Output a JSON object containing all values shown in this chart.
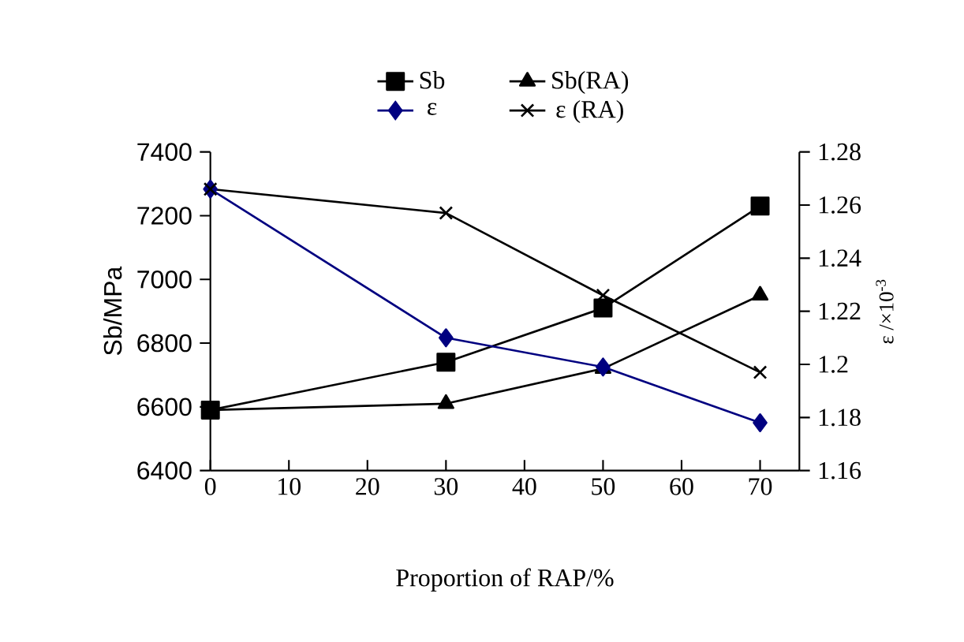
{
  "chart_data": {
    "type": "line",
    "xlabel": "Proportion of RAP/%",
    "ylabel": "Sb/MPa",
    "y2label": "ε /×10$^{-3}$",
    "x": [
      0,
      30,
      50,
      70
    ],
    "xlim": [
      0,
      75
    ],
    "xticks": [
      0,
      10,
      20,
      30,
      40,
      50,
      60,
      70
    ],
    "ylim": [
      6400,
      7400
    ],
    "yticks": [
      6400,
      6600,
      6800,
      7000,
      7200,
      7400
    ],
    "y2lim": [
      1.16,
      1.28
    ],
    "y2ticks": [
      1.16,
      1.18,
      1.2,
      1.22,
      1.24,
      1.26,
      1.28
    ],
    "legend": "top",
    "grid": false,
    "line_style": "solid",
    "series": [
      {
        "name": "Sb",
        "color": "#000000",
        "marker": "square",
        "values": [
          6590,
          6740,
          6910,
          7230
        ]
      },
      {
        "name": "Sb(RA)",
        "color": "#000000",
        "marker": "triangle",
        "values": [
          6590,
          6610,
          6720,
          6950
        ]
      },
      {
        "name": "ε",
        "color": "#000080",
        "marker": "diamond",
        "axis": "y2",
        "values": [
          1.266,
          1.21,
          1.199,
          1.178
        ]
      },
      {
        "name": "ε (RA)",
        "color": "#000000",
        "marker": "cross",
        "axis": "y2",
        "values": [
          1.266,
          1.257,
          1.226,
          1.197
        ]
      }
    ]
  }
}
